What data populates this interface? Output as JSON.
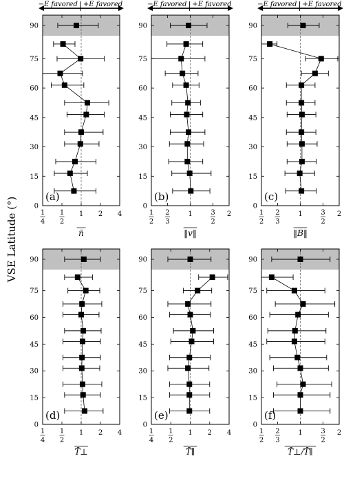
{
  "figure": {
    "ylabel": "VSE Latitude (°)",
    "arrow_left": "−E favored",
    "arrow_right": "+E favored"
  },
  "chart_data": [
    {
      "type": "scatter",
      "panel": "(a)",
      "xlabel": "n̄",
      "xscale": "log",
      "xlim": [
        0.25,
        4
      ],
      "xtick_labels": [
        "1/4",
        "1/2",
        "1",
        "2",
        "4"
      ],
      "xtick_values": [
        0.25,
        0.5,
        1,
        2,
        4
      ],
      "ylim": [
        0,
        100
      ],
      "ytick_labels": [
        "0",
        "15",
        "30",
        "45",
        "60",
        "75",
        "90"
      ],
      "ytick_values": [
        0,
        15,
        30,
        45,
        60,
        75,
        90
      ],
      "reference_line": 1,
      "shaded_band": [
        86,
        100
      ],
      "points": [
        {
          "lat": 94,
          "x": 0.84,
          "xmin": 0.43,
          "xmax": 1.85
        },
        {
          "lat": 82.5,
          "x": 0.52,
          "xmin": 0.37,
          "xmax": 0.8
        },
        {
          "lat": 75,
          "x": 0.98,
          "xmin": 0.42,
          "xmax": 2.3
        },
        {
          "lat": 67.5,
          "x": 0.47,
          "xmin": 0.22,
          "xmax": 1.05
        },
        {
          "lat": 61.5,
          "x": 0.55,
          "xmin": 0.34,
          "xmax": 1.1
        },
        {
          "lat": 52.5,
          "x": 1.25,
          "xmin": 0.55,
          "xmax": 2.7
        },
        {
          "lat": 46.5,
          "x": 1.2,
          "xmin": 0.6,
          "xmax": 2.3
        },
        {
          "lat": 37.5,
          "x": 1.0,
          "xmin": 0.55,
          "xmax": 2.2
        },
        {
          "lat": 31.5,
          "x": 0.97,
          "xmin": 0.55,
          "xmax": 1.9
        },
        {
          "lat": 22.5,
          "x": 0.8,
          "xmin": 0.4,
          "xmax": 1.7
        },
        {
          "lat": 16.5,
          "x": 0.67,
          "xmin": 0.38,
          "xmax": 1.25
        },
        {
          "lat": 7.5,
          "x": 0.77,
          "xmin": 0.38,
          "xmax": 1.7
        }
      ]
    },
    {
      "type": "scatter",
      "panel": "(b)",
      "xlabel": "‖v‖",
      "xscale": "log",
      "xlim": [
        0.5,
        2
      ],
      "xtick_labels": [
        "1/2",
        "2/3",
        "1",
        "3/2",
        "2"
      ],
      "xtick_values": [
        0.5,
        0.6667,
        1,
        1.5,
        2
      ],
      "ylim": [
        0,
        100
      ],
      "ytick_labels": [
        "0",
        "15",
        "30",
        "45",
        "60",
        "75",
        "90"
      ],
      "ytick_values": [
        0,
        15,
        30,
        45,
        60,
        75,
        90
      ],
      "reference_line": 1,
      "shaded_band": [
        86,
        100
      ],
      "points": [
        {
          "lat": 94,
          "x": 0.97,
          "xmin": 0.7,
          "xmax": 1.35
        },
        {
          "lat": 82.5,
          "x": 0.93,
          "xmin": 0.66,
          "xmax": 1.25
        },
        {
          "lat": 75,
          "x": 0.85,
          "xmin": 0.5,
          "xmax": 1.3
        },
        {
          "lat": 67.5,
          "x": 0.87,
          "xmin": 0.64,
          "xmax": 1.15
        },
        {
          "lat": 61.5,
          "x": 0.93,
          "xmin": 0.73,
          "xmax": 1.17
        },
        {
          "lat": 52.5,
          "x": 0.96,
          "xmin": 0.72,
          "xmax": 1.2
        },
        {
          "lat": 46.5,
          "x": 0.94,
          "xmin": 0.7,
          "xmax": 1.25
        },
        {
          "lat": 37.5,
          "x": 0.97,
          "xmin": 0.7,
          "xmax": 1.3
        },
        {
          "lat": 31.5,
          "x": 0.95,
          "xmin": 0.69,
          "xmax": 1.27
        },
        {
          "lat": 22.5,
          "x": 0.95,
          "xmin": 0.68,
          "xmax": 1.25
        },
        {
          "lat": 16.5,
          "x": 0.99,
          "xmin": 0.72,
          "xmax": 1.45
        },
        {
          "lat": 7.5,
          "x": 1.01,
          "xmin": 0.73,
          "xmax": 1.42
        }
      ]
    },
    {
      "type": "scatter",
      "panel": "(c)",
      "xlabel": "‖B‖",
      "xscale": "log",
      "xlim": [
        0.5,
        2
      ],
      "xtick_labels": [
        "1/2",
        "2/3",
        "1",
        "3/2",
        "2"
      ],
      "xtick_values": [
        0.5,
        0.6667,
        1,
        1.5,
        2
      ],
      "ylim": [
        0,
        100
      ],
      "ytick_labels": [
        "0",
        "15",
        "30",
        "45",
        "60",
        "75",
        "90"
      ],
      "ytick_values": [
        0,
        15,
        30,
        45,
        60,
        75,
        90
      ],
      "reference_line": 1,
      "shaded_band": [
        86,
        100
      ],
      "points": [
        {
          "lat": 94,
          "x": 1.05,
          "xmin": 0.8,
          "xmax": 1.4
        },
        {
          "lat": 82.5,
          "x": 0.58,
          "xmin": 0.5,
          "xmax": 0.66
        },
        {
          "lat": 75,
          "x": 1.45,
          "xmin": 1.1,
          "xmax": 1.95
        },
        {
          "lat": 67.5,
          "x": 1.3,
          "xmin": 1.02,
          "xmax": 1.65
        },
        {
          "lat": 61.5,
          "x": 1.02,
          "xmin": 0.78,
          "xmax": 1.3
        },
        {
          "lat": 52.5,
          "x": 1.02,
          "xmin": 0.78,
          "xmax": 1.3
        },
        {
          "lat": 46.5,
          "x": 1.03,
          "xmin": 0.79,
          "xmax": 1.32
        },
        {
          "lat": 37.5,
          "x": 1.02,
          "xmin": 0.78,
          "xmax": 1.32
        },
        {
          "lat": 31.5,
          "x": 1.03,
          "xmin": 0.79,
          "xmax": 1.35
        },
        {
          "lat": 22.5,
          "x": 1.03,
          "xmin": 0.79,
          "xmax": 1.33
        },
        {
          "lat": 16.5,
          "x": 0.99,
          "xmin": 0.76,
          "xmax": 1.29
        },
        {
          "lat": 7.5,
          "x": 1.02,
          "xmin": 0.77,
          "xmax": 1.33
        }
      ]
    },
    {
      "type": "scatter",
      "panel": "(d)",
      "xlabel": "T̄⊥",
      "xscale": "log",
      "xlim": [
        0.25,
        4
      ],
      "xtick_labels": [
        "1/4",
        "1/2",
        "1",
        "2",
        "4"
      ],
      "xtick_values": [
        0.25,
        0.5,
        1,
        2,
        4
      ],
      "ylim": [
        0,
        100
      ],
      "ytick_labels": [
        "0",
        "15",
        "30",
        "45",
        "60",
        "75",
        "90"
      ],
      "ytick_values": [
        0,
        15,
        30,
        45,
        60,
        75,
        90
      ],
      "reference_line": 1,
      "shaded_band": [
        86,
        100
      ],
      "points": [
        {
          "lat": 94,
          "x": 1.1,
          "xmin": 0.55,
          "xmax": 2.0
        },
        {
          "lat": 82.5,
          "x": 0.88,
          "xmin": 0.55,
          "xmax": 1.5
        },
        {
          "lat": 75,
          "x": 1.18,
          "xmin": 0.62,
          "xmax": 1.95
        },
        {
          "lat": 67.5,
          "x": 1.03,
          "xmin": 0.52,
          "xmax": 2.1
        },
        {
          "lat": 61.5,
          "x": 1.0,
          "xmin": 0.52,
          "xmax": 1.9
        },
        {
          "lat": 52.5,
          "x": 1.08,
          "xmin": 0.55,
          "xmax": 2.05
        },
        {
          "lat": 46.5,
          "x": 1.05,
          "xmin": 0.52,
          "xmax": 2.0
        },
        {
          "lat": 37.5,
          "x": 1.03,
          "xmin": 0.52,
          "xmax": 2.0
        },
        {
          "lat": 31.5,
          "x": 1.02,
          "xmin": 0.52,
          "xmax": 1.95
        },
        {
          "lat": 22.5,
          "x": 1.05,
          "xmin": 0.52,
          "xmax": 2.1
        },
        {
          "lat": 16.5,
          "x": 1.07,
          "xmin": 0.55,
          "xmax": 2.0
        },
        {
          "lat": 7.5,
          "x": 1.13,
          "xmin": 0.55,
          "xmax": 2.2
        }
      ]
    },
    {
      "type": "scatter",
      "panel": "(e)",
      "xlabel": "T̄∥",
      "xscale": "log",
      "xlim": [
        0.25,
        4
      ],
      "xtick_labels": [
        "1/4",
        "1/2",
        "1",
        "2",
        "4"
      ],
      "xtick_values": [
        0.25,
        0.5,
        1,
        2,
        4
      ],
      "ylim": [
        0,
        100
      ],
      "ytick_labels": [
        "0",
        "15",
        "30",
        "45",
        "60",
        "75",
        "90"
      ],
      "ytick_values": [
        0,
        15,
        30,
        45,
        60,
        75,
        90
      ],
      "reference_line": 1,
      "shaded_band": [
        86,
        100
      ],
      "points": [
        {
          "lat": 94,
          "x": 1.0,
          "xmin": 0.45,
          "xmax": 2.1
        },
        {
          "lat": 82.5,
          "x": 2.2,
          "xmin": 1.35,
          "xmax": 3.8
        },
        {
          "lat": 75,
          "x": 1.3,
          "xmin": 0.78,
          "xmax": 2.15
        },
        {
          "lat": 67.5,
          "x": 0.92,
          "xmin": 0.45,
          "xmax": 2.1
        },
        {
          "lat": 61.5,
          "x": 1.0,
          "xmin": 0.48,
          "xmax": 2.05
        },
        {
          "lat": 52.5,
          "x": 1.1,
          "xmin": 0.55,
          "xmax": 2.3
        },
        {
          "lat": 46.5,
          "x": 1.05,
          "xmin": 0.5,
          "xmax": 2.3
        },
        {
          "lat": 37.5,
          "x": 0.97,
          "xmin": 0.48,
          "xmax": 2.05
        },
        {
          "lat": 31.5,
          "x": 0.92,
          "xmin": 0.45,
          "xmax": 1.95
        },
        {
          "lat": 22.5,
          "x": 0.97,
          "xmin": 0.48,
          "xmax": 2.0
        },
        {
          "lat": 16.5,
          "x": 0.97,
          "xmin": 0.48,
          "xmax": 2.0
        },
        {
          "lat": 7.5,
          "x": 0.97,
          "xmin": 0.48,
          "xmax": 2.0
        }
      ]
    },
    {
      "type": "scatter",
      "panel": "(f)",
      "xlabel": "T̄⊥/T̄∥",
      "xscale": "log",
      "xlim": [
        0.5,
        2
      ],
      "xtick_labels": [
        "1/2",
        "2/3",
        "1",
        "3/2",
        "2"
      ],
      "xtick_values": [
        0.5,
        0.6667,
        1,
        1.5,
        2
      ],
      "ylim": [
        0,
        100
      ],
      "ytick_labels": [
        "0",
        "15",
        "30",
        "45",
        "60",
        "75",
        "90"
      ],
      "ytick_values": [
        0,
        15,
        30,
        45,
        60,
        75,
        90
      ],
      "reference_line": 1,
      "shaded_band": [
        86,
        100
      ],
      "points": [
        {
          "lat": 94,
          "x": 1.0,
          "xmin": 0.6,
          "xmax": 1.7
        },
        {
          "lat": 82.5,
          "x": 0.6,
          "xmin": 0.5,
          "xmax": 0.88
        },
        {
          "lat": 75,
          "x": 0.9,
          "xmin": 0.55,
          "xmax": 1.55
        },
        {
          "lat": 67.5,
          "x": 1.05,
          "xmin": 0.64,
          "xmax": 1.85
        },
        {
          "lat": 61.5,
          "x": 0.96,
          "xmin": 0.58,
          "xmax": 1.65
        },
        {
          "lat": 52.5,
          "x": 0.91,
          "xmin": 0.56,
          "xmax": 1.58
        },
        {
          "lat": 46.5,
          "x": 0.9,
          "xmin": 0.55,
          "xmax": 1.55
        },
        {
          "lat": 37.5,
          "x": 0.95,
          "xmin": 0.58,
          "xmax": 1.6
        },
        {
          "lat": 31.5,
          "x": 1.0,
          "xmin": 0.62,
          "xmax": 1.65
        },
        {
          "lat": 22.5,
          "x": 1.05,
          "xmin": 0.66,
          "xmax": 1.75
        },
        {
          "lat": 16.5,
          "x": 1.0,
          "xmin": 0.62,
          "xmax": 1.7
        },
        {
          "lat": 7.5,
          "x": 1.0,
          "xmin": 0.62,
          "xmax": 1.7
        }
      ]
    }
  ]
}
